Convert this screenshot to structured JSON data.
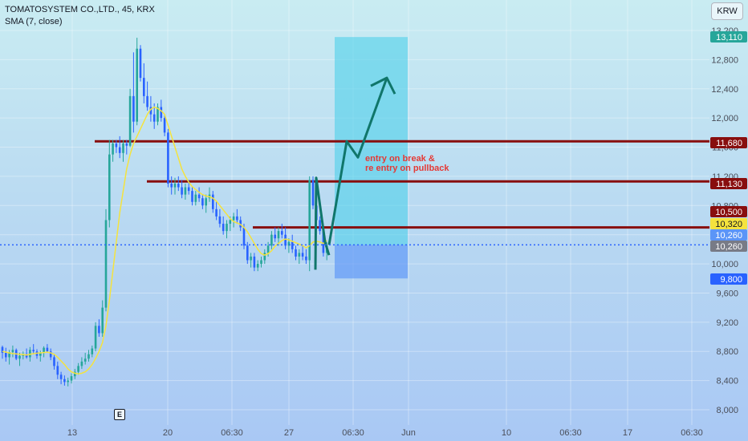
{
  "header": {
    "symbol_line": "TOMATOSYSTEM CO.,LTD., 45, KRX",
    "indicator_line": "SMA (7, close)"
  },
  "currency_label": "KRW",
  "event_badge": "E",
  "annotation": {
    "line1": "entry on break &",
    "line2": "re entry on pullback"
  },
  "colors": {
    "up": "#26a69a",
    "down": "#2962ff",
    "sma": "#f5e33d",
    "level": "#880e0e",
    "target_zone": "#4fd0ea",
    "stop_zone": "#5b95f7",
    "arrow": "#10766a",
    "current_price_line": "#2962ff",
    "annotation": "#e53935"
  },
  "chart_data": {
    "type": "candlestick",
    "y_axis": {
      "range": [
        7850,
        13450
      ],
      "ticks": [
        "13,200",
        "12,800",
        "12,400",
        "12,000",
        "11,600",
        "11,200",
        "10,800",
        "10,400",
        "10,000",
        "9,600",
        "9,200",
        "8,800",
        "8,400",
        "8,000"
      ]
    },
    "x_axis": {
      "ticks": [
        "13",
        "20",
        "06:30",
        "27",
        "06:30",
        "Jun",
        "10",
        "06:30",
        "17",
        "06:30"
      ]
    },
    "price_labels": [
      {
        "text": "13,110",
        "value": 13110,
        "color": "#26a69a"
      },
      {
        "text": "11,680",
        "value": 11680,
        "color": "#880e0e"
      },
      {
        "text": "11,130",
        "value": 11130,
        "color": "#880e0e"
      },
      {
        "text": "10,500",
        "value": 10500,
        "color": "#880e0e"
      },
      {
        "text": "10,320",
        "value": 10320,
        "color": "#f5e33d"
      },
      {
        "text": "10,260",
        "value": 10260,
        "color": "#5b95f7"
      },
      {
        "text": "10,260",
        "value": 10260,
        "color": "#787b86"
      },
      {
        "text": "9,800",
        "value": 9800,
        "color": "#2962ff"
      }
    ],
    "horizontal_levels": [
      11680,
      11130,
      10500
    ],
    "current_price": 10260,
    "position": {
      "entry": 10260,
      "target": 13110,
      "stop": 9800
    },
    "projection_path": [
      10260,
      11680,
      11460,
      12550
    ],
    "impulse_path": [
      9920,
      11180,
      10300,
      10120
    ],
    "candles": [
      [
        8860,
        8880,
        8700,
        8780
      ],
      [
        8780,
        8850,
        8660,
        8720
      ],
      [
        8720,
        8820,
        8620,
        8790
      ],
      [
        8790,
        8880,
        8720,
        8820
      ],
      [
        8820,
        8840,
        8680,
        8700
      ],
      [
        8700,
        8780,
        8600,
        8740
      ],
      [
        8740,
        8800,
        8690,
        8760
      ],
      [
        8760,
        8840,
        8700,
        8720
      ],
      [
        8720,
        8860,
        8660,
        8820
      ],
      [
        8820,
        8900,
        8760,
        8800
      ],
      [
        8800,
        8830,
        8700,
        8740
      ],
      [
        8740,
        8810,
        8660,
        8780
      ],
      [
        8780,
        8870,
        8720,
        8850
      ],
      [
        8850,
        8900,
        8780,
        8800
      ],
      [
        8800,
        8840,
        8680,
        8720
      ],
      [
        8720,
        8760,
        8550,
        8600
      ],
      [
        8600,
        8660,
        8420,
        8480
      ],
      [
        8480,
        8520,
        8350,
        8420
      ],
      [
        8420,
        8470,
        8330,
        8380
      ],
      [
        8380,
        8440,
        8320,
        8400
      ],
      [
        8400,
        8500,
        8360,
        8460
      ],
      [
        8460,
        8560,
        8420,
        8520
      ],
      [
        8520,
        8640,
        8480,
        8600
      ],
      [
        8600,
        8720,
        8560,
        8660
      ],
      [
        8660,
        8780,
        8620,
        8700
      ],
      [
        8700,
        8820,
        8660,
        8760
      ],
      [
        8760,
        8880,
        8720,
        8840
      ],
      [
        8840,
        9200,
        8800,
        9150
      ],
      [
        9150,
        9240,
        9000,
        9050
      ],
      [
        9050,
        9500,
        9000,
        9400
      ],
      [
        9400,
        10750,
        9350,
        10600
      ],
      [
        10600,
        11700,
        10500,
        11500
      ],
      [
        11500,
        11700,
        11400,
        11650
      ],
      [
        11650,
        11700,
        11520,
        11600
      ],
      [
        11600,
        11750,
        11450,
        11520
      ],
      [
        11520,
        11700,
        11400,
        11650
      ],
      [
        11650,
        11700,
        11500,
        11620
      ],
      [
        11620,
        12400,
        11600,
        12300
      ],
      [
        12300,
        12900,
        11800,
        11950
      ],
      [
        11950,
        13100,
        11900,
        12950
      ],
      [
        12950,
        13000,
        12500,
        12550
      ],
      [
        12550,
        12750,
        12200,
        12300
      ],
      [
        12300,
        12500,
        12100,
        12150
      ],
      [
        12150,
        12300,
        11950,
        12050
      ],
      [
        12050,
        12200,
        11850,
        11950
      ],
      [
        11950,
        12200,
        11900,
        12150
      ],
      [
        12150,
        12250,
        11950,
        12000
      ],
      [
        12000,
        12050,
        11750,
        11800
      ],
      [
        11800,
        11850,
        11050,
        11100
      ],
      [
        11100,
        11200,
        10950,
        11050
      ],
      [
        11050,
        11180,
        10950,
        11100
      ],
      [
        11100,
        11200,
        11000,
        11050
      ],
      [
        11050,
        11150,
        10900,
        10950
      ],
      [
        10950,
        11100,
        10880,
        11050
      ],
      [
        11050,
        11150,
        10950,
        11000
      ],
      [
        11000,
        11050,
        10800,
        10850
      ],
      [
        10850,
        11000,
        10800,
        10950
      ],
      [
        10950,
        11050,
        10850,
        10900
      ],
      [
        10900,
        10950,
        10750,
        10800
      ],
      [
        10800,
        10950,
        10700,
        10900
      ],
      [
        10900,
        11050,
        10850,
        10950
      ],
      [
        10950,
        11000,
        10700,
        10750
      ],
      [
        10750,
        10850,
        10600,
        10650
      ],
      [
        10650,
        10750,
        10500,
        10550
      ],
      [
        10550,
        10650,
        10400,
        10450
      ],
      [
        10450,
        10600,
        10350,
        10550
      ],
      [
        10550,
        10650,
        10450,
        10600
      ],
      [
        10600,
        10700,
        10500,
        10650
      ],
      [
        10650,
        10750,
        10550,
        10600
      ],
      [
        10600,
        10650,
        10450,
        10500
      ],
      [
        10500,
        10550,
        10200,
        10250
      ],
      [
        10250,
        10300,
        10000,
        10050
      ],
      [
        10050,
        10150,
        9950,
        10100
      ],
      [
        10100,
        10150,
        9900,
        9950
      ],
      [
        9950,
        10050,
        9900,
        10000
      ],
      [
        10000,
        10100,
        9950,
        10050
      ],
      [
        10050,
        10200,
        10000,
        10150
      ],
      [
        10150,
        10300,
        10100,
        10250
      ],
      [
        10250,
        10450,
        10200,
        10400
      ],
      [
        10400,
        10500,
        10300,
        10350
      ],
      [
        10350,
        10500,
        10250,
        10450
      ],
      [
        10450,
        10550,
        10350,
        10400
      ],
      [
        10400,
        10500,
        10200,
        10250
      ],
      [
        10250,
        10350,
        10150,
        10300
      ],
      [
        10300,
        10400,
        10150,
        10200
      ],
      [
        10200,
        10250,
        10050,
        10100
      ],
      [
        10100,
        10200,
        10000,
        10150
      ],
      [
        10150,
        10250,
        10050,
        10100
      ],
      [
        10100,
        10200,
        10000,
        10050
      ],
      [
        10050,
        11200,
        9900,
        11150
      ],
      [
        11150,
        11200,
        10750,
        10800
      ],
      [
        10800,
        10900,
        10550,
        10600
      ],
      [
        10600,
        10650,
        10400,
        10450
      ],
      [
        10450,
        10550,
        10100,
        10150
      ],
      [
        10150,
        10300,
        10050,
        10250
      ]
    ],
    "sma_values": [
      8800,
      8790,
      8780,
      8770,
      8765,
      8760,
      8755,
      8750,
      8760,
      8770,
      8775,
      8780,
      8785,
      8790,
      8780,
      8760,
      8720,
      8670,
      8620,
      8560,
      8520,
      8500,
      8490,
      8500,
      8520,
      8560,
      8620,
      8700,
      8800,
      8920,
      9150,
      9500,
      9900,
      10300,
      10700,
      11000,
      11300,
      11500,
      11650,
      11750,
      11850,
      11950,
      12050,
      12120,
      12150,
      12130,
      12100,
      12050,
      11900,
      11750,
      11600,
      11450,
      11300,
      11200,
      11120,
      11060,
      11020,
      10980,
      10950,
      10930,
      10920,
      10900,
      10860,
      10800,
      10740,
      10680,
      10620,
      10580,
      10560,
      10540,
      10500,
      10440,
      10360,
      10280,
      10200,
      10140,
      10120,
      10140,
      10180,
      10240,
      10280,
      10320,
      10340,
      10330,
      10310,
      10290,
      10270,
      10250,
      10220,
      10250,
      10300,
      10310,
      10300,
      10280,
      10320
    ]
  }
}
